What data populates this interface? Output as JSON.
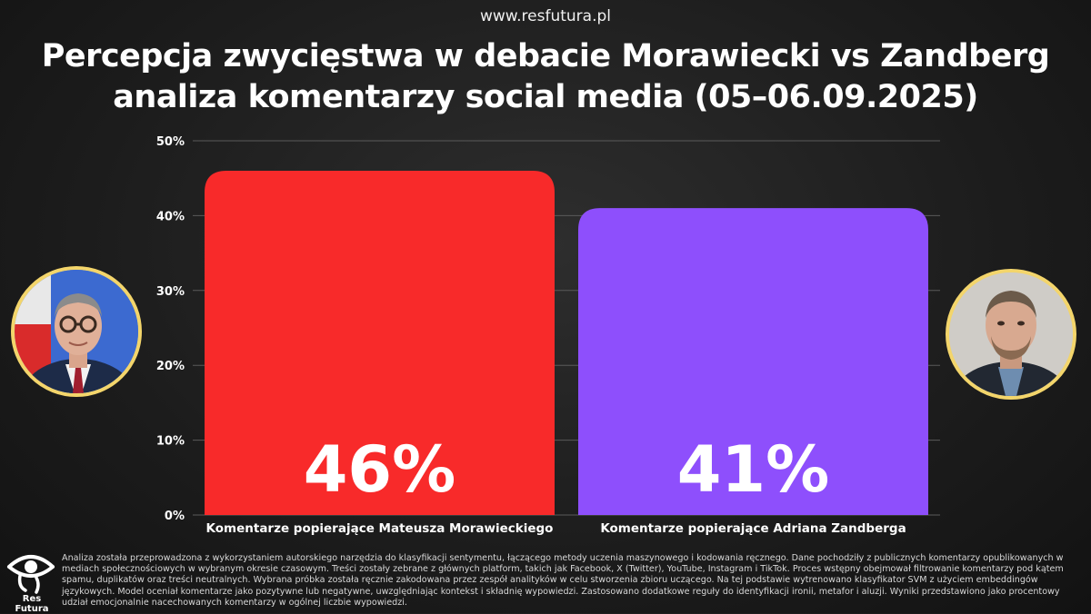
{
  "site_url": "www.resfutura.pl",
  "title_line1": "Percepcja zwycięstwa w debacie Morawiecki vs Zandberg",
  "title_line2": "analiza komentarzy social media (05–06.09.2025)",
  "chart_data": {
    "type": "bar",
    "categories": [
      "Komentarze popierające Mateusza Morawieckiego",
      "Komentarze popierające Adriana Zandberga"
    ],
    "values": [
      46,
      41
    ],
    "data_labels": [
      "46%",
      "41%"
    ],
    "ylim": [
      0,
      50
    ],
    "yticks": [
      "0%",
      "10%",
      "20%",
      "30%",
      "40%",
      "50%"
    ],
    "grid": true,
    "colors": [
      "#f82a2a",
      "#8e4ffc"
    ]
  },
  "colors": {
    "background": "#1c1c1c",
    "portrait_border": "#f3d56b"
  },
  "icons": [
    "portrait-morawiecki",
    "portrait-zandberg",
    "eye-logo-icon"
  ],
  "logo_text": "Res Futura",
  "footnote": "Analiza została przeprowadzona z wykorzystaniem autorskiego narzędzia do klasyfikacji sentymentu, łączącego metody uczenia maszynowego i kodowania ręcznego. Dane pochodziły z publicznych komentarzy opublikowanych w mediach społecznościowych w wybranym okresie czasowym. Treści zostały zebrane z głównych platform, takich jak Facebook, X (Twitter), YouTube, Instagram i TikTok. Proces wstępny obejmował filtrowanie komentarzy pod kątem spamu, duplikatów oraz treści neutralnych. Wybrana próbka została ręcznie zakodowana przez zespół analityków w celu stworzenia zbioru uczącego. Na tej podstawie wytrenowano klasyfikator SVM z użyciem embeddingów językowych. Model oceniał komentarze jako pozytywne lub negatywne, uwzględniając kontekst i składnię wypowiedzi. Zastosowano dodatkowe reguły do identyfikacji ironii, metafor i aluzji. Wyniki przedstawiono jako procentowy udział emocjonalnie nacechowanych komentarzy w ogólnej liczbie wypowiedzi."
}
